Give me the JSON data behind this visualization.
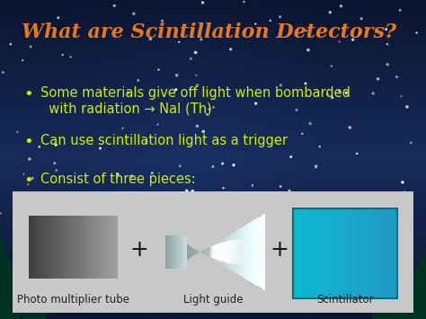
{
  "title": "What are Scintillation Detectors?",
  "title_color": "#E87820",
  "title_fontsize": 16,
  "bullet_color": "#CCEE00",
  "bullet_fontsize": 10.5,
  "bullets": [
    "Some materials give off light when bombarded\n  with radiation → NaI (Th)",
    "Can use scintillation light as a trigger",
    "Consist of three pieces:"
  ],
  "bullet_marker_fontsize": 13,
  "bg_dark": "#060e28",
  "bg_mid": "#0d2050",
  "bg_blue": "#1a3a80",
  "panel_bg": "#cccccc",
  "panel_label_color": "#222222",
  "labels": [
    "Photo multiplier tube",
    "Light guide",
    "Scintillator"
  ],
  "label_fontsize": 8.5,
  "figsize": [
    4.74,
    3.55
  ],
  "dpi": 100
}
